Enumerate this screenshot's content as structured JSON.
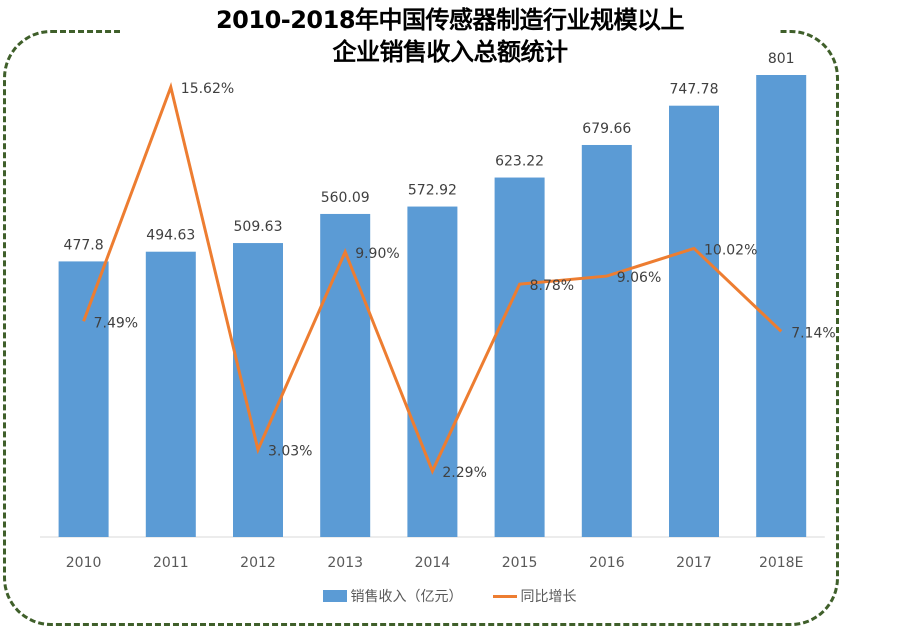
{
  "title_line1": "2010-2018年中国传感器制造行业规模以上",
  "title_line2": "企业销售收入总额统计",
  "legend": {
    "bar_label": "销售收入（亿元）",
    "line_label": "同比增长"
  },
  "colors": {
    "bar": "#5b9bd5",
    "line": "#ed7d31",
    "frame": "#3f5f2a"
  },
  "chart_data": {
    "type": "bar",
    "title": "2010-2018年中国传感器制造行业规模以上企业销售收入总额统计",
    "categories": [
      "2010",
      "2011",
      "2012",
      "2013",
      "2014",
      "2015",
      "2016",
      "2017",
      "2018E"
    ],
    "series": [
      {
        "name": "销售收入（亿元）",
        "type": "bar",
        "values": [
          477.8,
          494.63,
          509.63,
          560.09,
          572.92,
          623.22,
          679.66,
          747.78,
          801
        ],
        "labels": [
          "477.8",
          "494.63",
          "509.63",
          "560.09",
          "572.92",
          "623.22",
          "679.66",
          "747.78",
          "801"
        ]
      },
      {
        "name": "同比增长",
        "type": "line",
        "values": [
          7.49,
          15.62,
          3.03,
          9.9,
          2.29,
          8.78,
          9.06,
          10.02,
          7.14
        ],
        "labels": [
          "7.49%",
          "15.62%",
          "3.03%",
          "9.90%",
          "2.29%",
          "8.78%",
          "9.06%",
          "10.02%",
          "7.14%"
        ]
      }
    ],
    "xlabel": "",
    "ylabel": "",
    "ylim": [
      0,
      801
    ],
    "y2lim": [
      0,
      16
    ],
    "grid": false,
    "legend_position": "bottom"
  }
}
